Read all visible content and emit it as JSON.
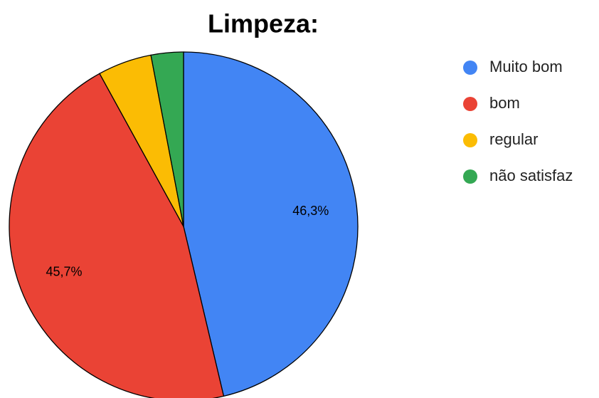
{
  "chart_data": {
    "type": "pie",
    "title": "Limpeza:",
    "categories": [
      "Muito bom",
      "bom",
      "regular",
      "não satisfaz"
    ],
    "values": [
      46.3,
      45.7,
      5,
      3
    ],
    "value_labels": [
      "46,3%",
      "45,7%",
      null,
      null
    ],
    "colors": [
      "#4285f4",
      "#ea4335",
      "#fbbc04",
      "#34a853"
    ],
    "legend": "right"
  }
}
